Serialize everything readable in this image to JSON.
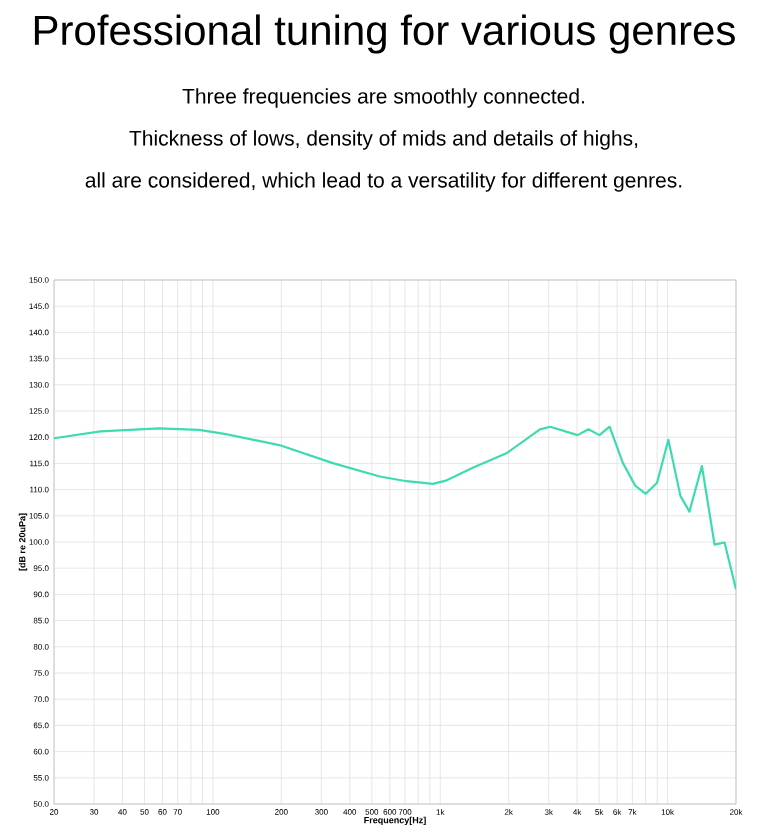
{
  "chart_data": {
    "type": "line",
    "title": "Professional tuning for various genres",
    "subtitle": "Three frequencies are smoothly connected.",
    "annotations": [
      "Thickness of lows, density of mids and details of highs,",
      "all are considered, which lead to a versatility for different genres."
    ],
    "xlabel": "Frequency[Hz]",
    "ylabel": "[dB re 20uPa]",
    "log": "x",
    "grid": true,
    "xlim": [
      20,
      20000
    ],
    "ylim": [
      50,
      150
    ],
    "xticks": [
      20,
      30,
      40,
      50,
      60,
      70,
      {
        "value": 80,
        "label": null
      },
      {
        "value": 90,
        "label": null
      },
      100,
      200,
      300,
      400,
      500,
      600,
      700,
      {
        "value": 800,
        "label": null
      },
      {
        "value": 900,
        "label": null
      },
      {
        "value": 1000,
        "label": "1k"
      },
      {
        "value": 2000,
        "label": "2k"
      },
      {
        "value": 3000,
        "label": "3k"
      },
      {
        "value": 4000,
        "label": "4k"
      },
      {
        "value": 5000,
        "label": "5k"
      },
      {
        "value": 6000,
        "label": "6k"
      },
      {
        "value": 7000,
        "label": "7k"
      },
      {
        "value": 8000,
        "label": null
      },
      {
        "value": 9000,
        "label": null
      },
      {
        "value": 10000,
        "label": "10k"
      },
      {
        "value": 20000,
        "label": "20k"
      }
    ],
    "yticks": [
      {
        "value": 50,
        "label": "50.0"
      },
      {
        "value": 55,
        "label": "55.0"
      },
      {
        "value": 60,
        "label": "60.0"
      },
      {
        "value": 65,
        "label": "65.0"
      },
      {
        "value": 70,
        "label": "70.0"
      },
      {
        "value": 75,
        "label": "75.0"
      },
      {
        "value": 80,
        "label": "80.0"
      },
      {
        "value": 85,
        "label": "85.0"
      },
      {
        "value": 90,
        "label": "90.0"
      },
      {
        "value": 95,
        "label": "95.0"
      },
      {
        "value": 100,
        "label": "100.0"
      },
      {
        "value": 105,
        "label": "105.0"
      },
      {
        "value": 110,
        "label": "110.0"
      },
      {
        "value": 115,
        "label": "115.0"
      },
      {
        "value": 120,
        "label": "120.0"
      },
      {
        "value": 125,
        "label": "125.0"
      },
      {
        "value": 130,
        "label": "130.0"
      },
      {
        "value": 135,
        "label": "135.0"
      },
      {
        "value": 140,
        "label": "140.0"
      },
      {
        "value": 145,
        "label": "145.0"
      },
      {
        "value": 150,
        "label": "150.0"
      }
    ],
    "x": [
      20,
      32,
      58,
      87,
      114,
      196,
      334,
      542,
      711,
      929,
      1057,
      1398,
      1968,
      2745,
      3046,
      4020,
      4486,
      5014,
      5558,
      6358,
      7220,
      8017,
      8990,
      10080,
      11390,
      12480,
      14160,
      16100,
      17810,
      20000
    ],
    "series": [
      {
        "color": "#3ddbb0",
        "values": [
          119.8,
          121.1,
          121.7,
          121.4,
          120.6,
          118.5,
          115.1,
          112.5,
          111.6,
          111.1,
          111.7,
          114.2,
          117.0,
          121.5,
          122.0,
          120.4,
          121.5,
          120.4,
          122.0,
          115.1,
          110.7,
          109.2,
          111.3,
          119.5,
          108.8,
          105.8,
          114.5,
          99.5,
          99.9,
          91.0
        ]
      }
    ]
  }
}
